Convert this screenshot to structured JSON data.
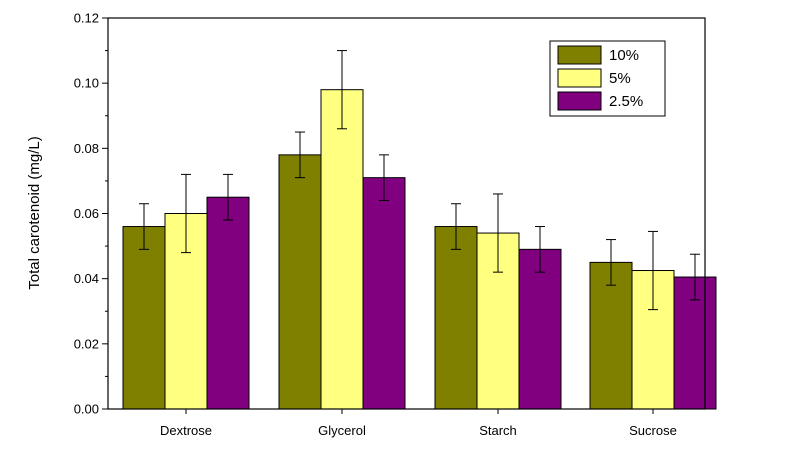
{
  "chart_data": {
    "type": "bar",
    "title": "",
    "xlabel": "",
    "ylabel": "Total carotenoid (mg/L)",
    "ylim": [
      0,
      0.12
    ],
    "yticks": [
      "0.00",
      "0.02",
      "0.04",
      "0.06",
      "0.08",
      "0.10",
      "0.12"
    ],
    "categories": [
      "Dextrose",
      "Glycerol",
      "Starch",
      "Sucrose"
    ],
    "series": [
      {
        "name": "10%",
        "color": "#808000",
        "values": [
          0.056,
          0.078,
          0.056,
          0.045
        ],
        "errors": [
          0.007,
          0.007,
          0.007,
          0.007
        ]
      },
      {
        "name": "5%",
        "color": "#ffff80",
        "values": [
          0.06,
          0.098,
          0.054,
          0.0425
        ],
        "errors": [
          0.012,
          0.012,
          0.012,
          0.012
        ]
      },
      {
        "name": "2.5%",
        "color": "#800080",
        "values": [
          0.065,
          0.071,
          0.049,
          0.0405
        ],
        "errors": [
          0.007,
          0.007,
          0.007,
          0.007
        ]
      }
    ],
    "legend_position": "top-right",
    "grid": false
  }
}
